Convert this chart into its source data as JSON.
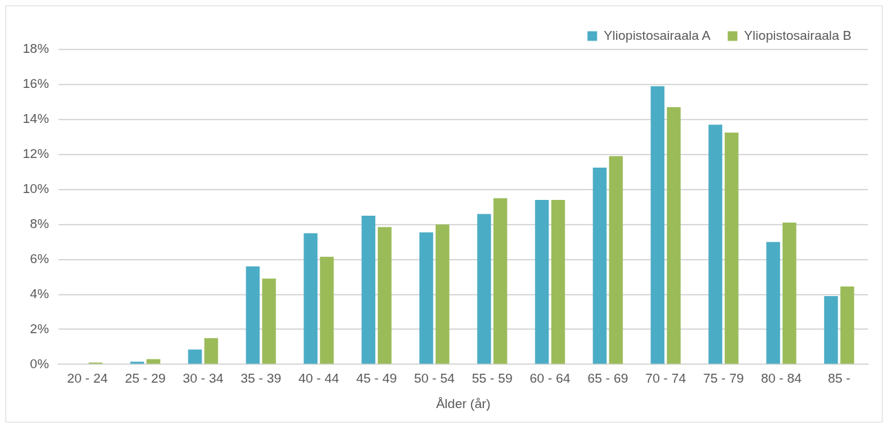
{
  "chart_data": {
    "type": "bar",
    "xlabel": "Ålder (år)",
    "categories": [
      "20 - 24",
      "25 - 29",
      "30 - 34",
      "35 - 39",
      "40 - 44",
      "45 - 49",
      "50 - 54",
      "55 - 59",
      "60 - 64",
      "65 - 69",
      "70 - 74",
      "75 - 79",
      "80 - 84",
      "85 -"
    ],
    "series": [
      {
        "name": "Yliopistosairaala A",
        "color": "#4bacc6",
        "values": [
          0,
          0.15,
          0.85,
          5.6,
          7.5,
          8.5,
          7.55,
          8.6,
          9.4,
          11.25,
          15.9,
          13.7,
          7.0,
          3.9
        ]
      },
      {
        "name": "Yliopistosairaala B",
        "color": "#9bbb59",
        "values": [
          0.1,
          0.3,
          1.5,
          4.9,
          6.15,
          7.85,
          8.0,
          9.5,
          9.4,
          11.9,
          14.7,
          13.25,
          8.1,
          4.45
        ]
      }
    ],
    "ylim": [
      0,
      18
    ],
    "yticks": [
      {
        "value": 0,
        "label": "0%"
      },
      {
        "value": 2,
        "label": "2%"
      },
      {
        "value": 4,
        "label": "4%"
      },
      {
        "value": 6,
        "label": "6%"
      },
      {
        "value": 8,
        "label": "8%"
      },
      {
        "value": 10,
        "label": "10%"
      },
      {
        "value": 12,
        "label": "12%"
      },
      {
        "value": 14,
        "label": "14%"
      },
      {
        "value": 16,
        "label": "16%"
      },
      {
        "value": 18,
        "label": "18%"
      }
    ],
    "grid": "y",
    "legend": "top right"
  }
}
